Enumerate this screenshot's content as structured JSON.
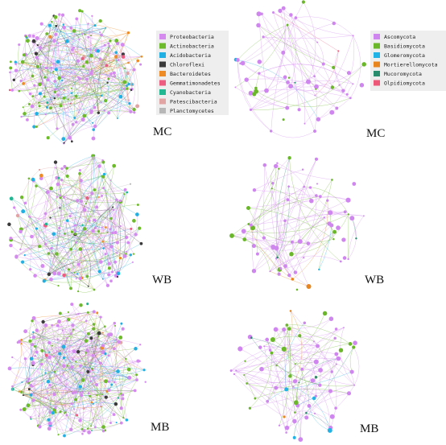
{
  "legends": {
    "bacteria": [
      {
        "label": "Proteobacteria",
        "color": "#d58af0"
      },
      {
        "label": "Actinobacteria",
        "color": "#6dba2a"
      },
      {
        "label": "Acidobacteria",
        "color": "#21b0e4"
      },
      {
        "label": "Chloroflexi",
        "color": "#3a3a3a"
      },
      {
        "label": "Bacteroidetes",
        "color": "#ef8b25"
      },
      {
        "label": "Gemmatimonadetes",
        "color": "#ee5d7f"
      },
      {
        "label": "Cyanobacteria",
        "color": "#1fb893"
      },
      {
        "label": "Patescibacteria",
        "color": "#e2a3a3"
      },
      {
        "label": "Planctomycetes",
        "color": "#b7b7b7"
      }
    ],
    "fungi": [
      {
        "label": "Ascomycota",
        "color": "#cf86ee"
      },
      {
        "label": "Basidiomycota",
        "color": "#6ab72a"
      },
      {
        "label": "Glomeromycota",
        "color": "#22b3e6"
      },
      {
        "label": "Mortierellomycota",
        "color": "#e8851f"
      },
      {
        "label": "Mucoromycota",
        "color": "#2a8d6d"
      },
      {
        "label": "Olpidiomycota",
        "color": "#ee5878"
      }
    ]
  },
  "panels": [
    {
      "id": "bac-MC",
      "label": "MC",
      "kingdom": "bacteria",
      "nodes": 200,
      "edges": 300,
      "seed": 11
    },
    {
      "id": "fun-MC",
      "label": "MC",
      "kingdom": "fungi",
      "nodes": 60,
      "edges": 70,
      "seed": 23
    },
    {
      "id": "bac-WB",
      "label": "WB",
      "kingdom": "bacteria",
      "nodes": 180,
      "edges": 260,
      "seed": 37
    },
    {
      "id": "fun-WB",
      "label": "WB",
      "kingdom": "fungi",
      "nodes": 70,
      "edges": 90,
      "seed": 41
    },
    {
      "id": "bac-MB",
      "label": "MB",
      "kingdom": "bacteria",
      "nodes": 220,
      "edges": 340,
      "seed": 53
    },
    {
      "id": "fun-MB",
      "label": "MB",
      "kingdom": "fungi",
      "nodes": 80,
      "edges": 110,
      "seed": 67
    }
  ]
}
